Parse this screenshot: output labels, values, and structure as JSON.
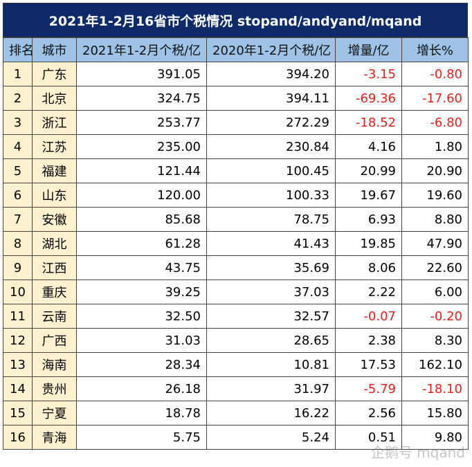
{
  "title": "2021年1-2月16省市个税情况 stopand/andyand/mqand",
  "columns": [
    "排名",
    "城市",
    "2021年1-2月个税/亿",
    "2020年1-2月个税/亿",
    "增量/亿",
    "增长%"
  ],
  "rows": [
    {
      "rank": "1",
      "city": "广东",
      "y2021": "391.05",
      "y2020": "394.20",
      "delta": "-3.15",
      "growth": "-0.80"
    },
    {
      "rank": "2",
      "city": "北京",
      "y2021": "324.75",
      "y2020": "394.11",
      "delta": "-69.36",
      "growth": "-17.60"
    },
    {
      "rank": "3",
      "city": "浙江",
      "y2021": "253.77",
      "y2020": "272.29",
      "delta": "-18.52",
      "growth": "-6.80"
    },
    {
      "rank": "4",
      "city": "江苏",
      "y2021": "235.00",
      "y2020": "230.84",
      "delta": "4.16",
      "growth": "1.80"
    },
    {
      "rank": "5",
      "city": "福建",
      "y2021": "121.44",
      "y2020": "100.45",
      "delta": "20.99",
      "growth": "20.90"
    },
    {
      "rank": "6",
      "city": "山东",
      "y2021": "120.00",
      "y2020": "100.33",
      "delta": "19.67",
      "growth": "19.60"
    },
    {
      "rank": "7",
      "city": "安徽",
      "y2021": "85.68",
      "y2020": "78.75",
      "delta": "6.93",
      "growth": "8.80"
    },
    {
      "rank": "8",
      "city": "湖北",
      "y2021": "61.28",
      "y2020": "41.43",
      "delta": "19.85",
      "growth": "47.90"
    },
    {
      "rank": "9",
      "city": "江西",
      "y2021": "43.75",
      "y2020": "35.69",
      "delta": "8.06",
      "growth": "22.60"
    },
    {
      "rank": "10",
      "city": "重庆",
      "y2021": "39.25",
      "y2020": "37.03",
      "delta": "2.22",
      "growth": "6.00"
    },
    {
      "rank": "11",
      "city": "云南",
      "y2021": "32.50",
      "y2020": "32.57",
      "delta": "-0.07",
      "growth": "-0.20"
    },
    {
      "rank": "12",
      "city": "广西",
      "y2021": "31.03",
      "y2020": "28.65",
      "delta": "2.38",
      "growth": "8.30"
    },
    {
      "rank": "13",
      "city": "海南",
      "y2021": "28.34",
      "y2020": "10.81",
      "delta": "17.53",
      "growth": "162.10"
    },
    {
      "rank": "14",
      "city": "贵州",
      "y2021": "26.18",
      "y2020": "31.97",
      "delta": "-5.79",
      "growth": "-18.10"
    },
    {
      "rank": "15",
      "city": "宁夏",
      "y2021": "18.78",
      "y2020": "16.22",
      "delta": "2.56",
      "growth": "15.80"
    },
    {
      "rank": "16",
      "city": "青海",
      "y2021": "5.75",
      "y2020": "5.24",
      "delta": "0.51",
      "growth": "9.80"
    }
  ],
  "watermark": "企鹅号 mqand",
  "colors": {
    "header_bg": "#0e2a6b",
    "column_header_bg": "#9ec3e6",
    "label_bg": "#fdf1cf",
    "negative": "#e0201a"
  }
}
